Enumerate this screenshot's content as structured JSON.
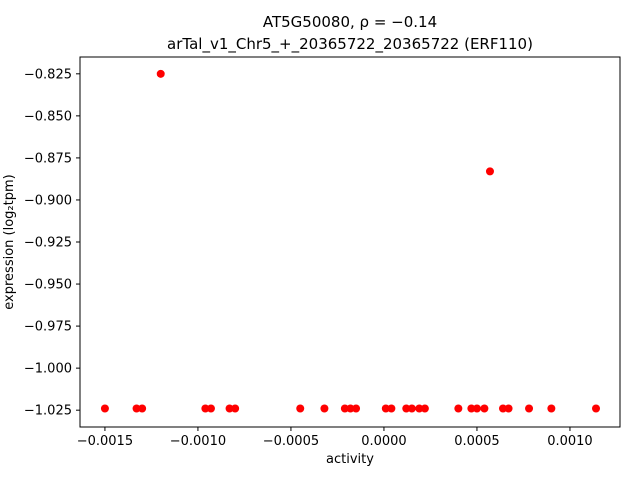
{
  "chart_data": {
    "type": "scatter",
    "title_lines": [
      "AT5G50080, ρ = −0.14",
      "arTal_v1_Chr5_+_20365722_20365722 (ERF110)"
    ],
    "xlabel": "activity",
    "ylabel": "expression (log₂tpm)",
    "xlim": [
      -0.001634,
      0.001269
    ],
    "ylim": [
      -1.035,
      -0.815
    ],
    "xticks": [
      -0.0015,
      -0.001,
      -0.0005,
      0.0,
      0.0005,
      0.001
    ],
    "xtick_labels": [
      "−0.0015",
      "−0.0010",
      "−0.0005",
      "0.0000",
      "0.0005",
      "0.0010"
    ],
    "yticks": [
      -0.825,
      -0.85,
      -0.875,
      -0.9,
      -0.925,
      -0.95,
      -0.975,
      -1.0,
      -1.025
    ],
    "ytick_labels": [
      "−0.825",
      "−0.850",
      "−0.875",
      "−0.900",
      "−0.925",
      "−0.950",
      "−0.975",
      "−1.000",
      "−1.025"
    ],
    "marker_color": "#ff0000",
    "marker_size_px": 4,
    "grid": false,
    "legend": null,
    "points": [
      [
        -0.0012,
        -0.825
      ],
      [
        0.00057,
        -0.883
      ],
      [
        -0.0015,
        -1.024
      ],
      [
        -0.00133,
        -1.024
      ],
      [
        -0.0013,
        -1.024
      ],
      [
        -0.00096,
        -1.024
      ],
      [
        -0.00093,
        -1.024
      ],
      [
        -0.00083,
        -1.024
      ],
      [
        -0.0008,
        -1.024
      ],
      [
        -0.00045,
        -1.024
      ],
      [
        -0.00032,
        -1.024
      ],
      [
        -0.00021,
        -1.024
      ],
      [
        -0.00018,
        -1.024
      ],
      [
        -0.00015,
        -1.024
      ],
      [
        1e-05,
        -1.024
      ],
      [
        4e-05,
        -1.024
      ],
      [
        0.00012,
        -1.024
      ],
      [
        0.00015,
        -1.024
      ],
      [
        0.00019,
        -1.024
      ],
      [
        0.00022,
        -1.024
      ],
      [
        0.0004,
        -1.024
      ],
      [
        0.00047,
        -1.024
      ],
      [
        0.0005,
        -1.024
      ],
      [
        0.00054,
        -1.024
      ],
      [
        0.00064,
        -1.024
      ],
      [
        0.00067,
        -1.024
      ],
      [
        0.00078,
        -1.024
      ],
      [
        0.0009,
        -1.024
      ],
      [
        0.00114,
        -1.024
      ]
    ]
  }
}
